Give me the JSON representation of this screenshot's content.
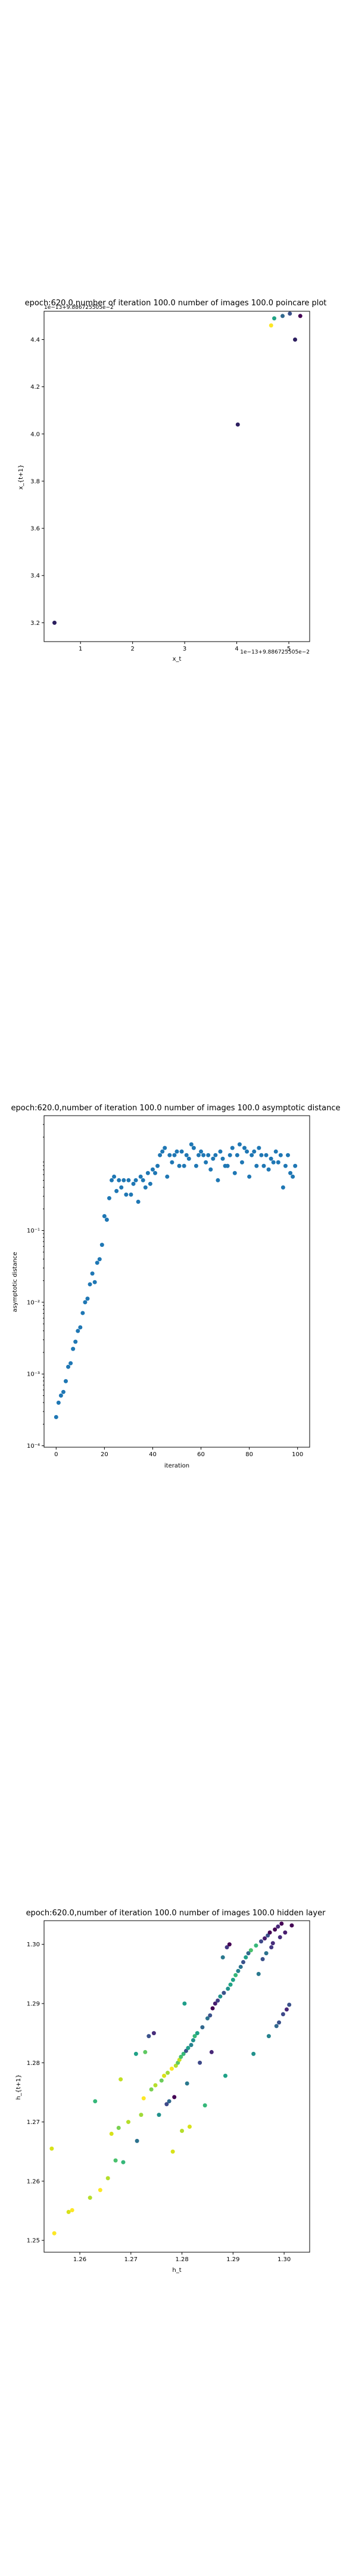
{
  "chart_data": [
    {
      "type": "scatter",
      "title": "epoch:620.0,number of iteration 100.0  number of images 100.0 poincare plot",
      "xlabel": "x_t",
      "ylabel": "x_{t+1}",
      "offset_x_text": "1e−13+9.886725505e−2",
      "offset_y_text": "1e−13+9.886725505e−2",
      "xlim": [
        0.3,
        5.4
      ],
      "ylim": [
        3.12,
        4.52
      ],
      "xticks": [
        "1",
        "2",
        "3",
        "4",
        "5"
      ],
      "yticks": [
        "3.2",
        "3.4",
        "3.6",
        "3.8",
        "4.0",
        "4.2",
        "4.4"
      ],
      "points": [
        {
          "x": 0.5,
          "y": 3.2,
          "color": "#2b1f5e"
        },
        {
          "x": 4.02,
          "y": 4.04,
          "color": "#2d1f60"
        },
        {
          "x": 4.66,
          "y": 4.46,
          "color": "#fde725"
        },
        {
          "x": 4.72,
          "y": 4.49,
          "color": "#21a385"
        },
        {
          "x": 4.88,
          "y": 4.5,
          "color": "#31688e"
        },
        {
          "x": 5.02,
          "y": 4.51,
          "color": "#3b528b"
        },
        {
          "x": 5.12,
          "y": 4.4,
          "color": "#2d1f60"
        },
        {
          "x": 5.22,
          "y": 4.5,
          "color": "#440154"
        }
      ]
    },
    {
      "type": "scatter",
      "title": "epoch:620.0,number of iteration 100.0  number of images 100.0 asymptotic distance",
      "xlabel": "iteration",
      "ylabel": "asymptotic distance",
      "yscale": "log",
      "xlim": [
        -5,
        105
      ],
      "ylim_exp": [
        -4.02,
        0.6
      ],
      "xticks": [
        "0",
        "20",
        "40",
        "60",
        "80",
        "100"
      ],
      "yticks": [
        "10⁻⁴",
        "10⁻³",
        "10⁻²",
        "10⁻¹"
      ],
      "x": [
        0,
        1,
        2,
        3,
        4,
        5,
        6,
        7,
        8,
        9,
        10,
        11,
        12,
        13,
        14,
        15,
        16,
        17,
        18,
        19,
        20,
        21,
        22,
        23,
        24,
        25,
        26,
        27,
        28,
        29,
        30,
        31,
        32,
        33,
        34,
        35,
        36,
        37,
        38,
        39,
        40,
        41,
        42,
        43,
        44,
        45,
        46,
        47,
        48,
        49,
        50,
        51,
        52,
        53,
        54,
        55,
        56,
        57,
        58,
        59,
        60,
        61,
        62,
        63,
        64,
        65,
        66,
        67,
        68,
        69,
        70,
        71,
        72,
        73,
        74,
        75,
        76,
        77,
        78,
        79,
        80,
        81,
        82,
        83,
        84,
        85,
        86,
        87,
        88,
        89,
        90,
        91,
        92,
        93,
        94,
        95,
        96,
        97,
        98,
        99
      ],
      "log10_y": [
        -3.6,
        -3.4,
        -3.3,
        -3.25,
        -3.1,
        -2.9,
        -2.85,
        -2.65,
        -2.55,
        -2.4,
        -2.35,
        -2.15,
        -2.0,
        -1.95,
        -1.75,
        -1.6,
        -1.72,
        -1.45,
        -1.4,
        -1.2,
        -0.8,
        -0.85,
        -0.55,
        -0.3,
        -0.25,
        -0.45,
        -0.3,
        -0.4,
        -0.3,
        -0.5,
        -0.3,
        -0.5,
        -0.35,
        -0.3,
        -0.6,
        -0.25,
        -0.3,
        -0.4,
        -0.2,
        -0.35,
        -0.15,
        -0.2,
        -0.1,
        0.05,
        0.1,
        0.15,
        -0.25,
        0.05,
        -0.05,
        0.05,
        0.1,
        -0.1,
        0.1,
        -0.1,
        0.05,
        0.0,
        0.2,
        0.15,
        -0.1,
        0.05,
        0.1,
        0.05,
        -0.05,
        0.05,
        -0.15,
        0.0,
        0.05,
        -0.3,
        0.1,
        0.0,
        -0.1,
        -0.1,
        0.05,
        0.15,
        -0.2,
        0.05,
        0.2,
        -0.05,
        0.15,
        0.1,
        -0.25,
        0.05,
        0.1,
        -0.1,
        0.15,
        0.05,
        -0.1,
        0.05,
        -0.15,
        0.0,
        -0.05,
        0.1,
        -0.05,
        0.05,
        -0.4,
        -0.1,
        0.05,
        -0.2,
        -0.25,
        -0.1
      ]
    },
    {
      "type": "scatter",
      "title": "epoch:620.0,number of iteration 100.0  number of images 100.0 hidden layer",
      "xlabel": "h_t",
      "ylabel": "h_{t+1}",
      "xlim": [
        1.253,
        1.305
      ],
      "ylim": [
        1.248,
        1.304
      ],
      "xticks": [
        "1.26",
        "1.27",
        "1.28",
        "1.29",
        "1.30"
      ],
      "yticks": [
        "1.25",
        "1.26",
        "1.27",
        "1.28",
        "1.29",
        "1.30"
      ],
      "points": [
        {
          "x": 1.2545,
          "y": 1.2655,
          "color": "#d8e219"
        },
        {
          "x": 1.255,
          "y": 1.2512,
          "color": "#fde725"
        },
        {
          "x": 1.2578,
          "y": 1.2548,
          "color": "#d8e219"
        },
        {
          "x": 1.2585,
          "y": 1.2551,
          "color": "#fde725"
        },
        {
          "x": 1.262,
          "y": 1.2572,
          "color": "#b5de2b"
        },
        {
          "x": 1.263,
          "y": 1.2735,
          "color": "#35b779"
        },
        {
          "x": 1.264,
          "y": 1.2585,
          "color": "#fde725"
        },
        {
          "x": 1.2655,
          "y": 1.2605,
          "color": "#b5de2b"
        },
        {
          "x": 1.2662,
          "y": 1.268,
          "color": "#d8e219"
        },
        {
          "x": 1.267,
          "y": 1.2635,
          "color": "#4ac16d"
        },
        {
          "x": 1.2676,
          "y": 1.269,
          "color": "#7ad151"
        },
        {
          "x": 1.268,
          "y": 1.2772,
          "color": "#c2df23"
        },
        {
          "x": 1.2685,
          "y": 1.2632,
          "color": "#35b779"
        },
        {
          "x": 1.2695,
          "y": 1.27,
          "color": "#b5de2b"
        },
        {
          "x": 1.271,
          "y": 1.2815,
          "color": "#1fa187"
        },
        {
          "x": 1.2712,
          "y": 1.2668,
          "color": "#2c728e"
        },
        {
          "x": 1.272,
          "y": 1.2712,
          "color": "#a0da39"
        },
        {
          "x": 1.2725,
          "y": 1.274,
          "color": "#fde725"
        },
        {
          "x": 1.2728,
          "y": 1.2818,
          "color": "#5ec962"
        },
        {
          "x": 1.2735,
          "y": 1.2845,
          "color": "#3b528b"
        },
        {
          "x": 1.274,
          "y": 1.2755,
          "color": "#7ad151"
        },
        {
          "x": 1.2745,
          "y": 1.285,
          "color": "#472d7b"
        },
        {
          "x": 1.2748,
          "y": 1.2762,
          "color": "#b5de2b"
        },
        {
          "x": 1.2755,
          "y": 1.2712,
          "color": "#21918c"
        },
        {
          "x": 1.276,
          "y": 1.277,
          "color": "#6ccd5a"
        },
        {
          "x": 1.2765,
          "y": 1.2778,
          "color": "#d8e219"
        },
        {
          "x": 1.277,
          "y": 1.273,
          "color": "#3e4989"
        },
        {
          "x": 1.2772,
          "y": 1.2783,
          "color": "#a0da39"
        },
        {
          "x": 1.2775,
          "y": 1.2735,
          "color": "#31688e"
        },
        {
          "x": 1.278,
          "y": 1.279,
          "color": "#fde725"
        },
        {
          "x": 1.2782,
          "y": 1.265,
          "color": "#d8e219"
        },
        {
          "x": 1.2785,
          "y": 1.2742,
          "color": "#440154"
        },
        {
          "x": 1.2788,
          "y": 1.2795,
          "color": "#b5de2b"
        },
        {
          "x": 1.2792,
          "y": 1.28,
          "color": "#5ec962"
        },
        {
          "x": 1.2795,
          "y": 1.2805,
          "color": "#c2df23"
        },
        {
          "x": 1.2798,
          "y": 1.281,
          "color": "#4ac16d"
        },
        {
          "x": 1.28,
          "y": 1.2685,
          "color": "#b5de2b"
        },
        {
          "x": 1.2803,
          "y": 1.2815,
          "color": "#35b779"
        },
        {
          "x": 1.2805,
          "y": 1.29,
          "color": "#1f9e89"
        },
        {
          "x": 1.2808,
          "y": 1.282,
          "color": "#3b528b"
        },
        {
          "x": 1.281,
          "y": 1.2765,
          "color": "#2a788e"
        },
        {
          "x": 1.2812,
          "y": 1.2825,
          "color": "#1f9e89"
        },
        {
          "x": 1.2815,
          "y": 1.2692,
          "color": "#d8e219"
        },
        {
          "x": 1.2818,
          "y": 1.283,
          "color": "#26828e"
        },
        {
          "x": 1.2822,
          "y": 1.2838,
          "color": "#21918c"
        },
        {
          "x": 1.2825,
          "y": 1.2845,
          "color": "#35b779"
        },
        {
          "x": 1.283,
          "y": 1.285,
          "color": "#1fa187"
        },
        {
          "x": 1.2835,
          "y": 1.28,
          "color": "#3e4989"
        },
        {
          "x": 1.284,
          "y": 1.286,
          "color": "#31688e"
        },
        {
          "x": 1.2845,
          "y": 1.2728,
          "color": "#35b779"
        },
        {
          "x": 1.285,
          "y": 1.2875,
          "color": "#2c728e"
        },
        {
          "x": 1.2855,
          "y": 1.288,
          "color": "#3b528b"
        },
        {
          "x": 1.2858,
          "y": 1.2818,
          "color": "#482878"
        },
        {
          "x": 1.286,
          "y": 1.2892,
          "color": "#440154"
        },
        {
          "x": 1.2865,
          "y": 1.29,
          "color": "#481d6f"
        },
        {
          "x": 1.287,
          "y": 1.2905,
          "color": "#433e85"
        },
        {
          "x": 1.2875,
          "y": 1.2912,
          "color": "#21918c"
        },
        {
          "x": 1.288,
          "y": 1.2978,
          "color": "#2a788e"
        },
        {
          "x": 1.2882,
          "y": 1.2918,
          "color": "#3b528b"
        },
        {
          "x": 1.2885,
          "y": 1.2778,
          "color": "#1fa187"
        },
        {
          "x": 1.2888,
          "y": 1.2995,
          "color": "#443983"
        },
        {
          "x": 1.289,
          "y": 1.2925,
          "color": "#21918c"
        },
        {
          "x": 1.2893,
          "y": 1.3,
          "color": "#440154"
        },
        {
          "x": 1.2895,
          "y": 1.2932,
          "color": "#20a386"
        },
        {
          "x": 1.29,
          "y": 1.294,
          "color": "#1fa187"
        },
        {
          "x": 1.2905,
          "y": 1.2948,
          "color": "#35b779"
        },
        {
          "x": 1.291,
          "y": 1.2955,
          "color": "#26828e"
        },
        {
          "x": 1.2915,
          "y": 1.2962,
          "color": "#2c728e"
        },
        {
          "x": 1.292,
          "y": 1.297,
          "color": "#3b528b"
        },
        {
          "x": 1.2925,
          "y": 1.2978,
          "color": "#1f9e89"
        },
        {
          "x": 1.293,
          "y": 1.2985,
          "color": "#31688e"
        },
        {
          "x": 1.2935,
          "y": 1.299,
          "color": "#4ac16d"
        },
        {
          "x": 1.294,
          "y": 1.2815,
          "color": "#21918c"
        },
        {
          "x": 1.2945,
          "y": 1.2998,
          "color": "#35b779"
        },
        {
          "x": 1.295,
          "y": 1.295,
          "color": "#2a788e"
        },
        {
          "x": 1.2955,
          "y": 1.3005,
          "color": "#3e4989"
        },
        {
          "x": 1.2958,
          "y": 1.2975,
          "color": "#3b528b"
        },
        {
          "x": 1.2962,
          "y": 1.301,
          "color": "#481d6f"
        },
        {
          "x": 1.2965,
          "y": 1.2985,
          "color": "#2c728e"
        },
        {
          "x": 1.2968,
          "y": 1.3015,
          "color": "#3b528b"
        },
        {
          "x": 1.297,
          "y": 1.2845,
          "color": "#26828e"
        },
        {
          "x": 1.2972,
          "y": 1.302,
          "color": "#440154"
        },
        {
          "x": 1.2975,
          "y": 1.2995,
          "color": "#443983"
        },
        {
          "x": 1.2978,
          "y": 1.3002,
          "color": "#472d7b"
        },
        {
          "x": 1.2982,
          "y": 1.3025,
          "color": "#440154"
        },
        {
          "x": 1.2985,
          "y": 1.2862,
          "color": "#31688e"
        },
        {
          "x": 1.2988,
          "y": 1.303,
          "color": "#482878"
        },
        {
          "x": 1.299,
          "y": 1.2868,
          "color": "#3b528b"
        },
        {
          "x": 1.2992,
          "y": 1.3012,
          "color": "#472d7b"
        },
        {
          "x": 1.2995,
          "y": 1.3035,
          "color": "#440154"
        },
        {
          "x": 1.2998,
          "y": 1.2882,
          "color": "#3e4989"
        },
        {
          "x": 1.3002,
          "y": 1.302,
          "color": "#481d6f"
        },
        {
          "x": 1.3005,
          "y": 1.289,
          "color": "#482878"
        },
        {
          "x": 1.301,
          "y": 1.2898,
          "color": "#3b528b"
        },
        {
          "x": 1.3015,
          "y": 1.3032,
          "color": "#440154"
        }
      ]
    }
  ]
}
